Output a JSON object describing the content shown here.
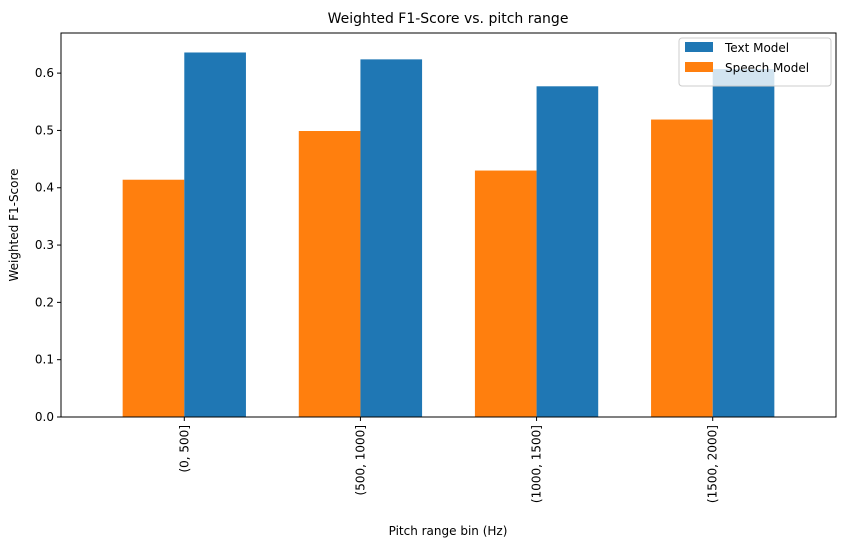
{
  "chart_data": {
    "type": "bar",
    "title": "Weighted F1-Score vs. pitch range",
    "xlabel": "Pitch range bin (Hz)",
    "ylabel": "Weighted F1-Score",
    "categories": [
      "(0, 500]",
      "(500, 1000]",
      "(1000, 1500]",
      "(1500, 2000]"
    ],
    "series": [
      {
        "name": "Speech Model",
        "color": "#ff7f0e",
        "values": [
          0.414,
          0.499,
          0.43,
          0.519
        ]
      },
      {
        "name": "Text Model",
        "color": "#1f77b4",
        "values": [
          0.636,
          0.624,
          0.577,
          0.607
        ]
      }
    ],
    "ylim": [
      0,
      0.67
    ],
    "yticks": [
      0.0,
      0.1,
      0.2,
      0.3,
      0.4,
      0.5,
      0.6
    ],
    "ytick_labels": [
      "0.0",
      "0.1",
      "0.2",
      "0.3",
      "0.4",
      "0.5",
      "0.6"
    ],
    "legend": {
      "position": "top-right",
      "order": [
        "Text Model",
        "Speech Model"
      ]
    },
    "grid": false
  }
}
